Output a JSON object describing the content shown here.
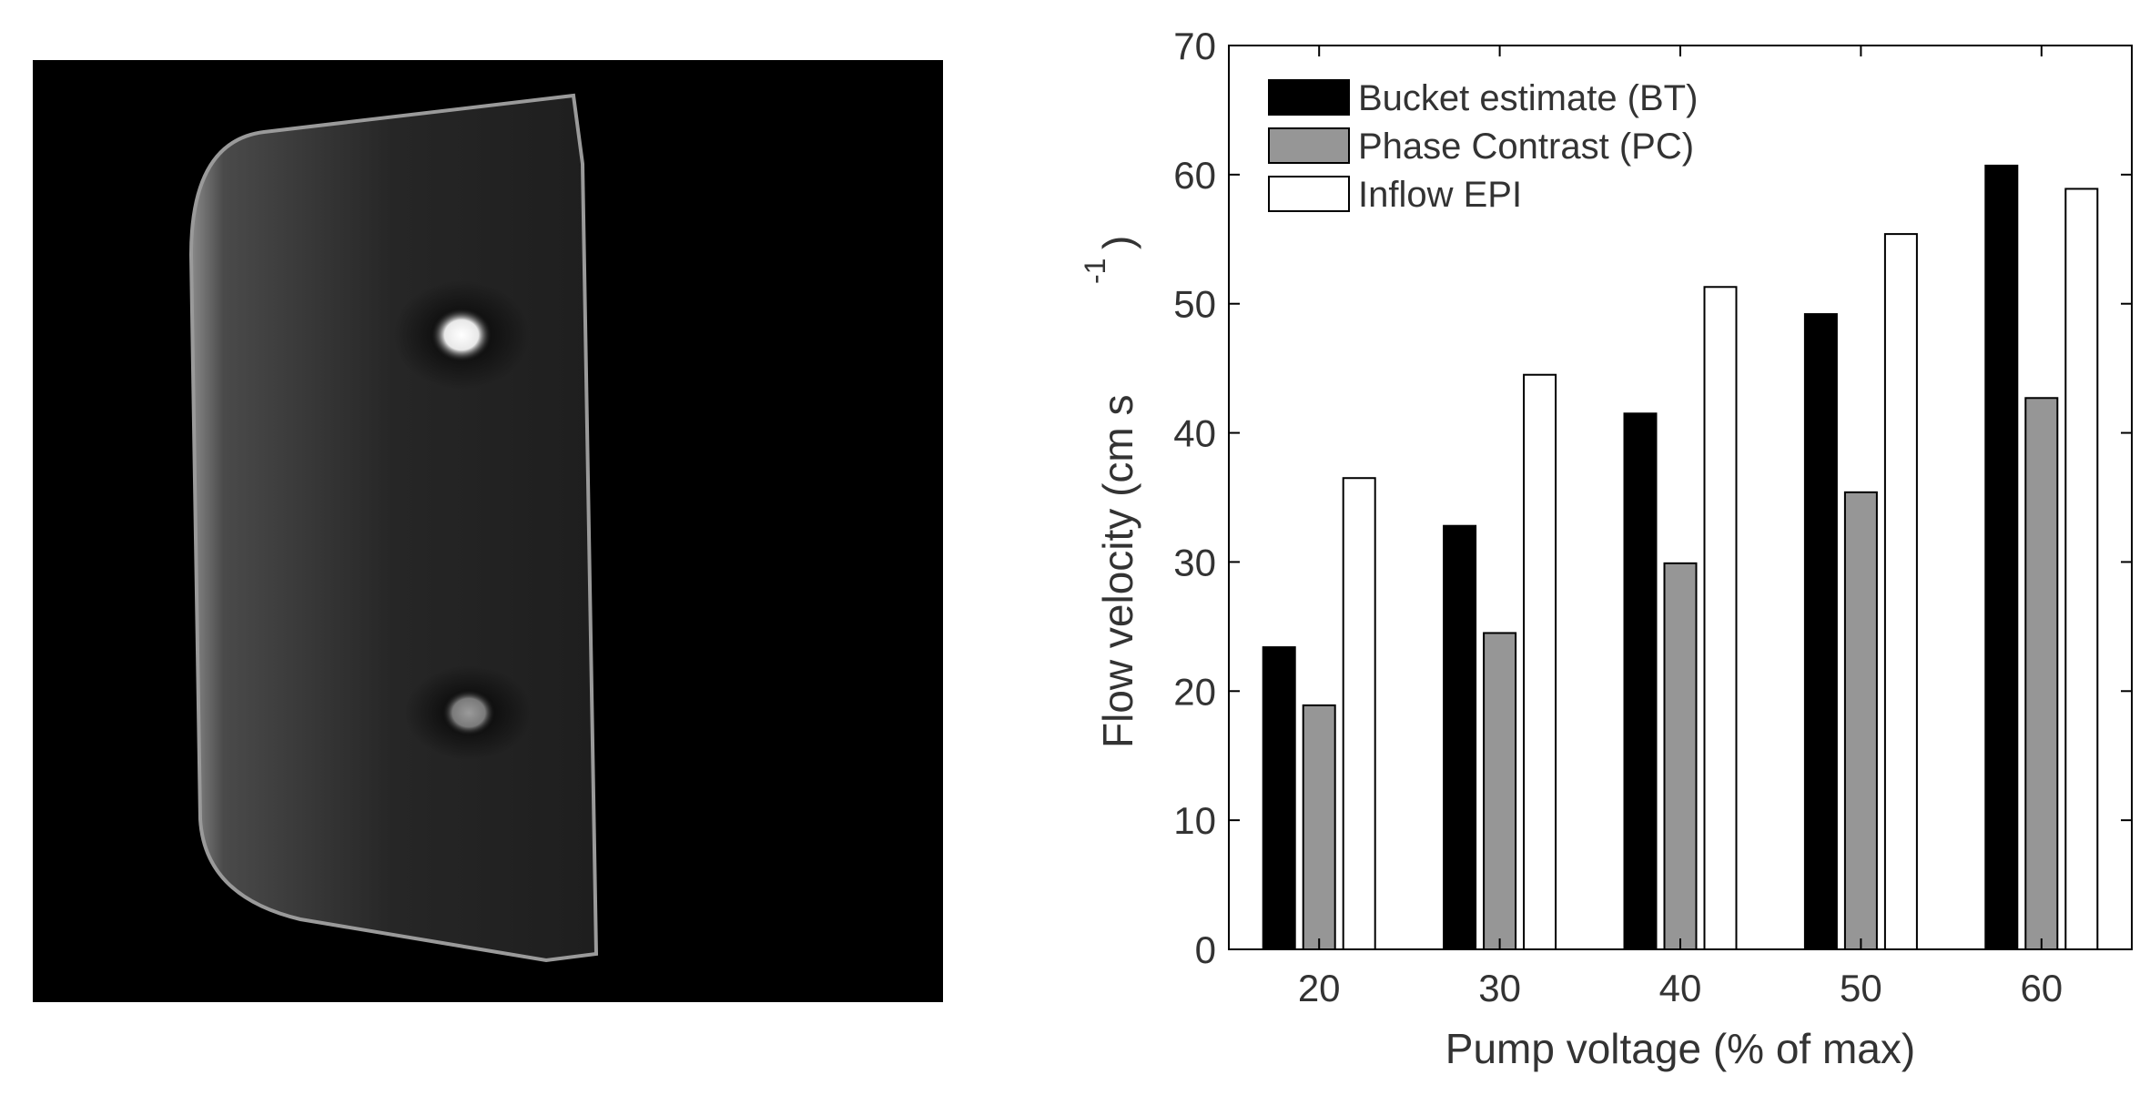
{
  "chart_data": {
    "type": "bar",
    "title": "",
    "xlabel": "Pump voltage (% of max)",
    "ylabel": "Flow velocity (cm s",
    "ylabel_superscript": "-1",
    "ylabel_close": ")",
    "categories": [
      "20",
      "30",
      "40",
      "50",
      "60"
    ],
    "ylim": [
      0,
      70
    ],
    "yticks": [
      "0",
      "10",
      "20",
      "30",
      "40",
      "50",
      "60",
      "70"
    ],
    "legend_position": "top-left",
    "grid": false,
    "series": [
      {
        "name": "Bucket estimate (BT)",
        "color": "#000000",
        "values": [
          23.4,
          32.8,
          41.5,
          49.2,
          60.7
        ]
      },
      {
        "name": "Phase Contrast (PC)",
        "color": "#969696",
        "values": [
          18.9,
          24.5,
          29.9,
          35.4,
          42.7
        ]
      },
      {
        "name": "Inflow EPI",
        "color": "#ffffff",
        "values": [
          36.5,
          44.5,
          51.3,
          55.4,
          58.9
        ]
      }
    ]
  }
}
